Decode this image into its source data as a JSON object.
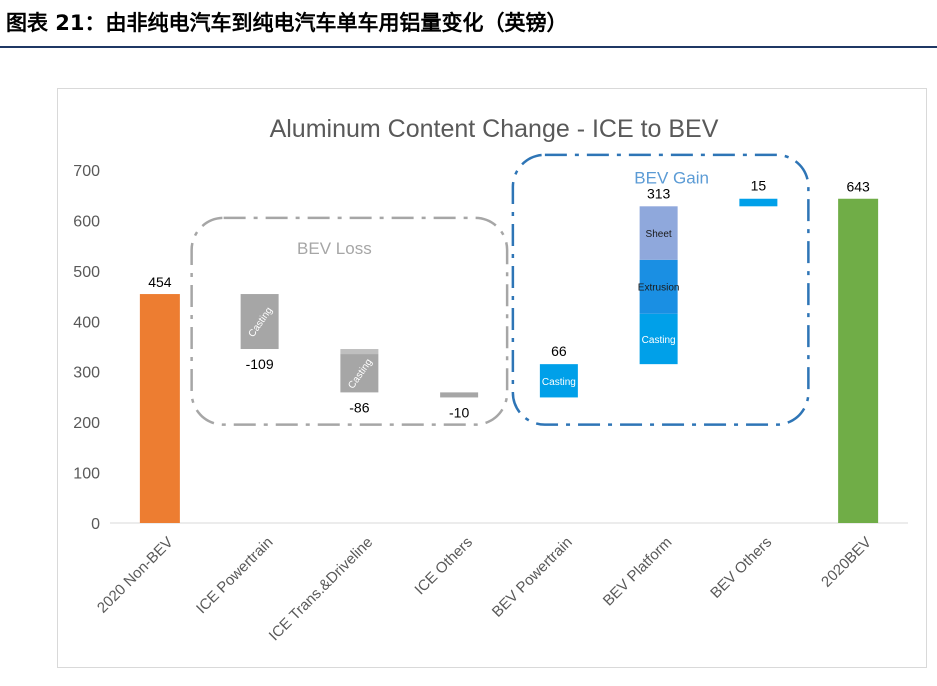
{
  "header": {
    "figure_title": "图表 21：由非纯电汽车到纯电汽车单车用铝量变化（英镑）"
  },
  "chart_data": {
    "type": "bar",
    "subtype": "waterfall",
    "title": "Aluminum Content Change - ICE to BEV",
    "xlabel": "",
    "ylabel": "",
    "ylim": [
      0,
      700
    ],
    "yticks": [
      "0",
      "100",
      "200",
      "300",
      "400",
      "500",
      "600",
      "700"
    ],
    "grid": false,
    "categories": [
      "2020 Non-BEV",
      "ICE Powertrain",
      "ICE Trans.&Driveline",
      "ICE Others",
      "BEV Powertrain",
      "BEV Platform",
      "BEV Others",
      "2020BEV"
    ],
    "steps": [
      {
        "category": "2020 Non-BEV",
        "value": 454,
        "label": "454",
        "kind": "total",
        "color": "#ed7d31"
      },
      {
        "category": "ICE Powertrain",
        "value": -109,
        "label": "-109",
        "kind": "loss",
        "color": "#a6a6a6",
        "segments": [
          {
            "name": "Casting",
            "value": -109
          }
        ]
      },
      {
        "category": "ICE Trans.&Driveline",
        "value": -86,
        "label": "-86",
        "kind": "loss",
        "color": "#a6a6a6",
        "segments": [
          {
            "name": "",
            "value": -10
          },
          {
            "name": "Casting",
            "value": -76
          }
        ]
      },
      {
        "category": "ICE Others",
        "value": -10,
        "label": "-10",
        "kind": "loss",
        "color": "#a6a6a6",
        "segments": [
          {
            "name": "",
            "value": -10
          }
        ]
      },
      {
        "category": "BEV Powertrain",
        "value": 66,
        "label": "66",
        "kind": "gain",
        "color": "#00a0e9",
        "segments": [
          {
            "name": "Casting",
            "value": 66
          }
        ]
      },
      {
        "category": "BEV Platform",
        "value": 313,
        "label": "313",
        "kind": "gain",
        "color": "#00a0e9",
        "segments": [
          {
            "name": "Casting",
            "value": 100
          },
          {
            "name": "Extrusion",
            "value": 107
          },
          {
            "name": "Sheet",
            "value": 106
          }
        ]
      },
      {
        "category": "BEV Others",
        "value": 15,
        "label": "15",
        "kind": "gain",
        "color": "#00a0e9",
        "segments": [
          {
            "name": "",
            "value": 15
          }
        ]
      },
      {
        "category": "2020BEV",
        "value": 643,
        "label": "643",
        "kind": "total",
        "color": "#70ad47"
      }
    ],
    "groups": [
      {
        "label": "BEV Loss",
        "color": "#a6a6a6"
      },
      {
        "label": "BEV Gain",
        "color": "#2e75b6"
      }
    ],
    "colors": {
      "loss_light": "#bfbfbf",
      "sheet": "#8fa8dc",
      "extrusion": "#1a8fe3",
      "casting_blue": "#00a0e9"
    }
  }
}
